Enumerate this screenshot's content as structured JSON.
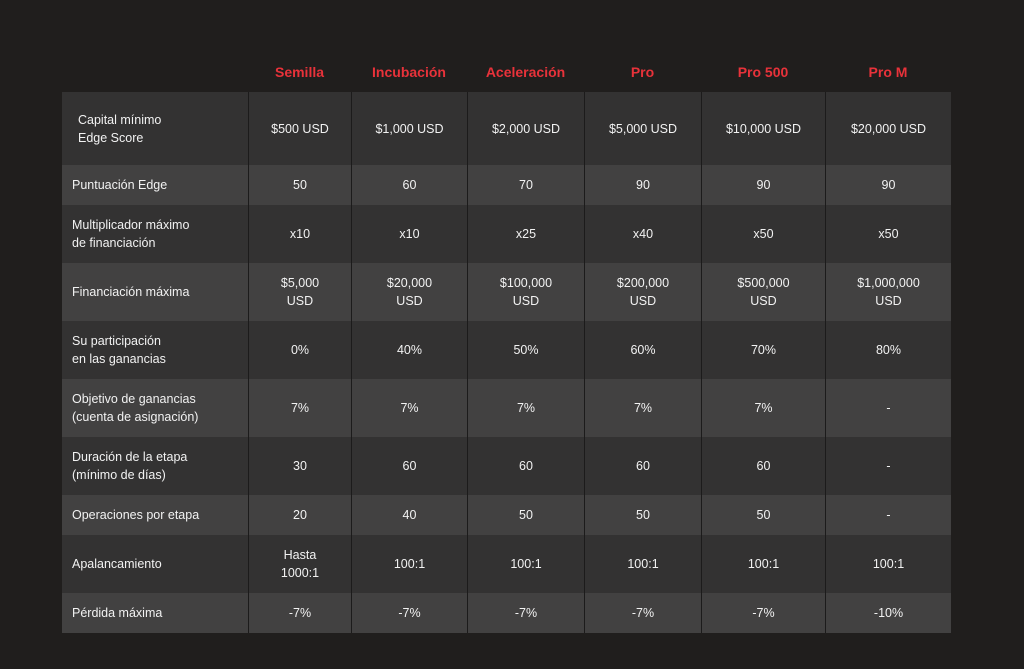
{
  "columns": [
    "Semilla",
    "Incubación",
    "Aceleración",
    "Pro",
    "Pro 500",
    "Pro M"
  ],
  "rows": [
    {
      "label": "Capital mínimo\nEdge Score",
      "values": [
        "$500 USD",
        "$1,000 USD",
        "$2,000 USD",
        "$5,000 USD",
        "$10,000 USD",
        "$20,000 USD"
      ]
    },
    {
      "label": "Puntuación Edge",
      "values": [
        "50",
        "60",
        "70",
        "90",
        "90",
        "90"
      ]
    },
    {
      "label": "Multiplicador máximo\nde financiación",
      "values": [
        "x10",
        "x10",
        "x25",
        "x40",
        "x50",
        "x50"
      ]
    },
    {
      "label": "Financiación máxima",
      "values": [
        "$5,000\nUSD",
        "$20,000\nUSD",
        "$100,000\nUSD",
        "$200,000\nUSD",
        "$500,000\nUSD",
        "$1,000,000\nUSD"
      ]
    },
    {
      "label": "Su participación\nen las ganancias",
      "values": [
        "0%",
        "40%",
        "50%",
        "60%",
        "70%",
        "80%"
      ]
    },
    {
      "label": "Objetivo de ganancias\n(cuenta de asignación)",
      "values": [
        "7%",
        "7%",
        "7%",
        "7%",
        "7%",
        "-"
      ]
    },
    {
      "label": "Duración de la etapa\n(mínimo de días)",
      "values": [
        "30",
        "60",
        "60",
        "60",
        "60",
        "-"
      ]
    },
    {
      "label": "Operaciones por etapa",
      "values": [
        "20",
        "40",
        "50",
        "50",
        "50",
        "-"
      ]
    },
    {
      "label": "Apalancamiento",
      "values": [
        "Hasta\n1000:1",
        "100:1",
        "100:1",
        "100:1",
        "100:1",
        "100:1"
      ]
    },
    {
      "label": "Pérdida máxima",
      "values": [
        "-7%",
        "-7%",
        "-7%",
        "-7%",
        "-7%",
        "-10%"
      ]
    }
  ],
  "colors": {
    "background": "#201e1d",
    "header_text": "#e8323a",
    "row_dark": "#333232",
    "row_light": "#424141",
    "text": "#f2f2f2"
  }
}
